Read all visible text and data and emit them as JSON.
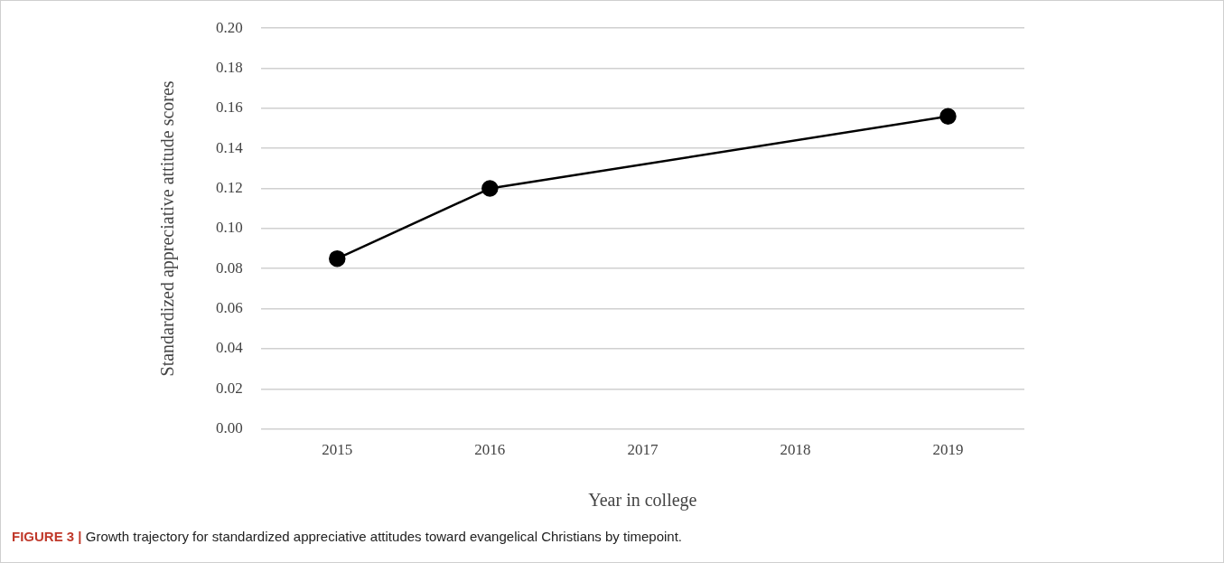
{
  "chart_data": {
    "type": "line",
    "xlabel": "Year in college",
    "ylabel": "Standardized appreciative attitude scores",
    "x": [
      2015,
      2016,
      2019
    ],
    "xlim": [
      2014.5,
      2019.5
    ],
    "xticks": [
      2015,
      2016,
      2017,
      2018,
      2019
    ],
    "series": [
      {
        "color": "#000000",
        "values": [
          0.085,
          0.12,
          0.156
        ]
      }
    ],
    "ylim": [
      0,
      0.2
    ],
    "yticks": [
      {
        "value": 0,
        "label": "0.00"
      },
      {
        "value": 0.02,
        "label": "0.02"
      },
      {
        "value": 0.04,
        "label": "0.04"
      },
      {
        "value": 0.06,
        "label": "0.06"
      },
      {
        "value": 0.08,
        "label": "0.08"
      },
      {
        "value": 0.1,
        "label": "0.10"
      },
      {
        "value": 0.12,
        "label": "0.12"
      },
      {
        "value": 0.14,
        "label": "0.14"
      },
      {
        "value": 0.16,
        "label": "0.16"
      },
      {
        "value": 0.18,
        "label": "0.18"
      },
      {
        "value": 0.2,
        "label": "0.20"
      }
    ],
    "grid": "y",
    "legend": false,
    "marker": "circle",
    "line_style": "solid",
    "annotations": [
      "FIGURE 3 | Growth trajectory for standardized appreciative attitudes toward evangelical Christians by timepoint."
    ]
  }
}
